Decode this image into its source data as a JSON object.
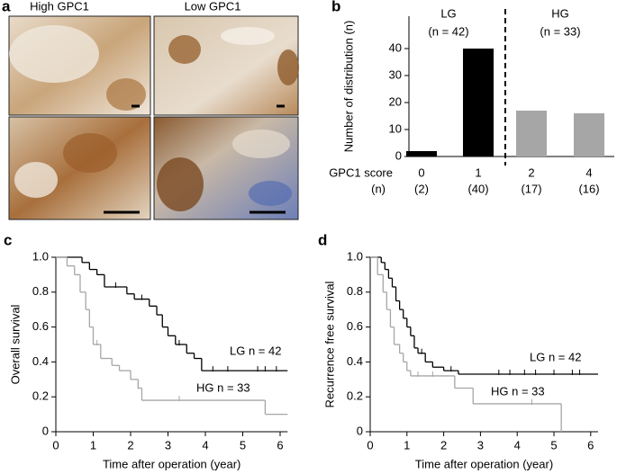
{
  "panel_a": {
    "label": "a",
    "columns": [
      "High GPC1",
      "Low GPC1"
    ]
  },
  "chart_data": [
    {
      "type": "bar",
      "label": "b",
      "ylabel": "Number of distribution (n)",
      "categories": [
        "0",
        "1",
        "2",
        "4"
      ],
      "category_counts": [
        "(2)",
        "(40)",
        "(17)",
        "(16)"
      ],
      "row_labels": [
        "GPC1 score",
        "(n)"
      ],
      "values": [
        2,
        40,
        17,
        16
      ],
      "colors": [
        "#000000",
        "#000000",
        "#a6a6a6",
        "#a6a6a6"
      ],
      "ylim": [
        0,
        52
      ],
      "yticks": [
        0,
        10,
        20,
        30,
        40
      ],
      "groups": [
        {
          "name": "LG",
          "count": "(n = 42)"
        },
        {
          "name": "HG",
          "count": "(n = 33)"
        }
      ]
    },
    {
      "type": "survival",
      "label": "c",
      "xlabel": "Time after operation (year)",
      "ylabel": "Overall survival",
      "xlim": [
        0,
        6.2
      ],
      "xticks": [
        0,
        1,
        2,
        3,
        4,
        5,
        6
      ],
      "ylim": [
        0,
        1
      ],
      "yticks": [
        0,
        0.2,
        0.4,
        0.6,
        0.8,
        {
          "value": 1,
          "label": "1.0"
        }
      ],
      "series": [
        {
          "name": "LG n = 42",
          "color": "#000000",
          "x": [
            0,
            0.7,
            0.9,
            1.1,
            1.3,
            1.9,
            2.1,
            2.5,
            2.7,
            2.85,
            3.0,
            3.2,
            3.5,
            3.7,
            3.9,
            6.2
          ],
          "values": [
            1,
            0.97,
            0.93,
            0.9,
            0.83,
            0.79,
            0.76,
            0.72,
            0.67,
            0.6,
            0.55,
            0.5,
            0.45,
            0.42,
            0.35,
            0.35
          ],
          "censor_x": [
            1.6,
            2.3,
            3.3,
            4.2,
            4.6,
            5.4,
            5.6,
            5.9
          ],
          "censor_y": [
            0.83,
            0.76,
            0.5,
            0.35,
            0.35,
            0.35,
            0.35,
            0.35
          ]
        },
        {
          "name": "HG n = 33",
          "color": "#a6a6a6",
          "x": [
            0,
            0.3,
            0.5,
            0.65,
            0.8,
            0.9,
            1.0,
            1.2,
            1.5,
            1.7,
            2.0,
            2.2,
            2.3,
            5.6,
            6.2
          ],
          "values": [
            1,
            0.95,
            0.9,
            0.8,
            0.7,
            0.6,
            0.5,
            0.42,
            0.38,
            0.35,
            0.3,
            0.25,
            0.18,
            0.1,
            0.1
          ],
          "censor_x": [
            1.1,
            2.2,
            3.3
          ],
          "censor_y": [
            0.5,
            0.25,
            0.18
          ]
        }
      ]
    },
    {
      "type": "survival",
      "label": "d",
      "xlabel": "Time after operation (year)",
      "ylabel": "Recurrence free survival",
      "xlim": [
        0,
        6.2
      ],
      "xticks": [
        0,
        1,
        2,
        3,
        4,
        5,
        6
      ],
      "ylim": [
        0,
        1
      ],
      "yticks": [
        0,
        0.2,
        0.4,
        0.6,
        0.8,
        {
          "value": 1,
          "label": "1.0"
        }
      ],
      "series": [
        {
          "name": "LG n = 42",
          "color": "#000000",
          "x": [
            0,
            0.3,
            0.4,
            0.5,
            0.6,
            0.7,
            0.8,
            0.9,
            1.0,
            1.1,
            1.2,
            1.3,
            1.5,
            1.7,
            2.0,
            2.4,
            6.2
          ],
          "values": [
            1,
            0.97,
            0.93,
            0.88,
            0.83,
            0.75,
            0.7,
            0.65,
            0.6,
            0.55,
            0.48,
            0.45,
            0.4,
            0.37,
            0.35,
            0.33,
            0.33
          ],
          "censor_x": [
            1.4,
            2.2,
            3.5,
            3.8,
            4.2,
            4.5,
            5.0,
            5.5,
            5.7
          ],
          "censor_y": [
            0.45,
            0.35,
            0.33,
            0.33,
            0.33,
            0.33,
            0.33,
            0.33,
            0.33
          ]
        },
        {
          "name": "HG n = 33",
          "color": "#a6a6a6",
          "x": [
            0,
            0.2,
            0.35,
            0.45,
            0.55,
            0.65,
            0.8,
            0.9,
            1.0,
            1.1,
            2.3,
            2.8,
            5.2
          ],
          "values": [
            1,
            0.9,
            0.8,
            0.7,
            0.6,
            0.5,
            0.45,
            0.4,
            0.35,
            0.32,
            0.25,
            0.16,
            0
          ],
          "censor_x": [
            1.3,
            1.7,
            4.4
          ],
          "censor_y": [
            0.32,
            0.32,
            0.16
          ]
        }
      ]
    }
  ]
}
